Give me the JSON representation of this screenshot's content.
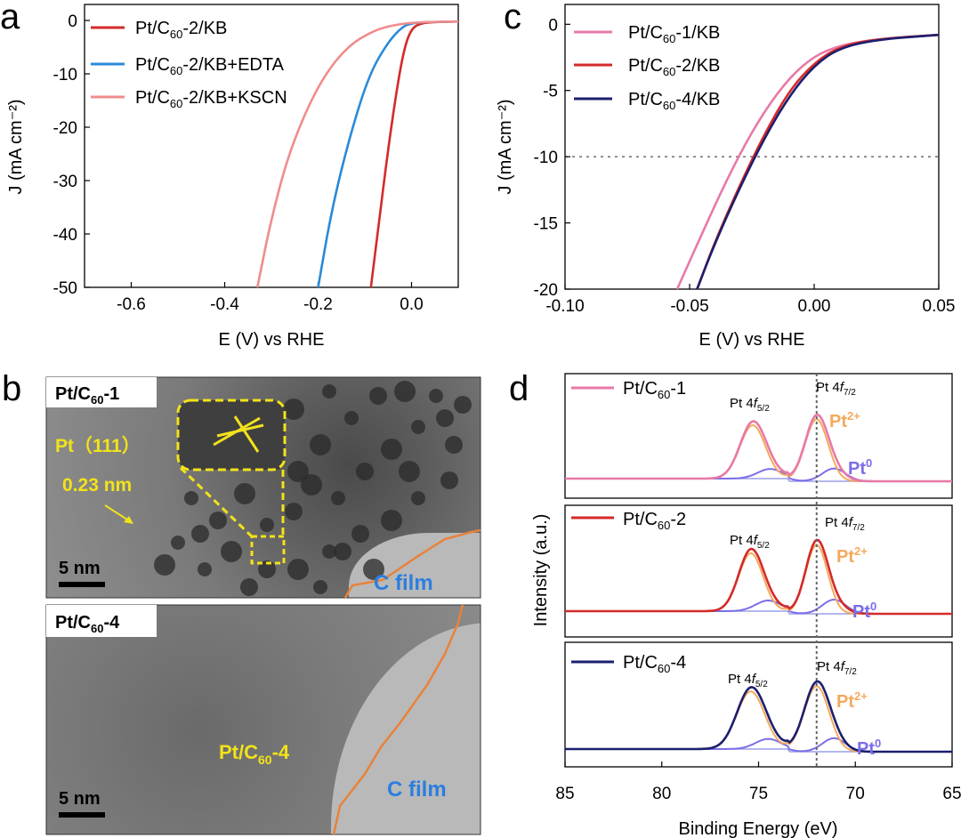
{
  "panels": {
    "a": "a",
    "b": "b",
    "c": "c",
    "d": "d"
  },
  "chart_data": [
    {
      "panel": "a",
      "type": "line",
      "xlabel": "E (V) vs RHE",
      "ylabel": "J (mA cm⁻²)",
      "xlim": [
        -0.7,
        0.1
      ],
      "ylim": [
        -50,
        3
      ],
      "xticks": [
        -0.6,
        -0.4,
        -0.2,
        0.0
      ],
      "yticks": [
        0,
        -10,
        -20,
        -30,
        -40,
        -50
      ],
      "xtick_labels": [
        "-0.6",
        "-0.4",
        "-0.2",
        "0.0"
      ],
      "ytick_labels": [
        "0",
        "-10",
        "-20",
        "-30",
        "-40",
        "-50"
      ],
      "legend": "top-left",
      "series": [
        {
          "name": "Pt/C60-2/KB",
          "color": "#d42a2a",
          "x": [
            -0.087,
            -0.07,
            -0.05,
            -0.03,
            -0.015,
            0.0,
            0.02,
            0.05,
            0.1
          ],
          "y": [
            -50,
            -38,
            -24,
            -12,
            -5,
            -1.5,
            -0.5,
            -0.3,
            -0.2
          ]
        },
        {
          "name": "Pt/C60-2/KB+EDTA",
          "color": "#2a8ad8",
          "x": [
            -0.2,
            -0.17,
            -0.13,
            -0.09,
            -0.05,
            -0.02,
            0.0,
            0.03,
            0.1
          ],
          "y": [
            -50,
            -35,
            -21,
            -10,
            -4,
            -1.2,
            -0.5,
            -0.3,
            -0.2
          ]
        },
        {
          "name": "Pt/C60-2/KB+KSCN",
          "color": "#f08c8c",
          "x": [
            -0.33,
            -0.3,
            -0.26,
            -0.2,
            -0.14,
            -0.08,
            -0.03,
            0.02,
            0.1
          ],
          "y": [
            -50,
            -37,
            -24,
            -12,
            -5,
            -1.8,
            -0.7,
            -0.3,
            -0.2
          ]
        }
      ]
    },
    {
      "panel": "c",
      "type": "line",
      "xlabel": "E (V) vs RHE",
      "ylabel": "J (mA cm⁻²)",
      "xlim": [
        -0.1,
        0.05
      ],
      "ylim": [
        -20,
        1.5
      ],
      "xticks": [
        -0.1,
        -0.05,
        0.0,
        0.05
      ],
      "yticks": [
        0,
        -5,
        -10,
        -15,
        -20
      ],
      "xtick_labels": [
        "-0.10",
        "-0.05",
        "0.00",
        "0.05"
      ],
      "ytick_labels": [
        "0",
        "-5",
        "-10",
        "-15",
        "-20"
      ],
      "reference_line": {
        "y": -10,
        "style": "dotted"
      },
      "legend": "top-left",
      "series": [
        {
          "name": "Pt/C60-1/KB",
          "color": "#e879a8",
          "x": [
            -0.055,
            -0.045,
            -0.035,
            -0.025,
            -0.015,
            -0.005,
            0.005,
            0.02,
            0.05
          ],
          "y": [
            -20,
            -15.8,
            -11.7,
            -8.1,
            -5.2,
            -3.1,
            -1.9,
            -1.2,
            -0.8
          ]
        },
        {
          "name": "Pt/C60-2/KB",
          "color": "#d42a2a",
          "x": [
            -0.047,
            -0.04,
            -0.03,
            -0.02,
            -0.01,
            0.0,
            0.01,
            0.025,
            0.05
          ],
          "y": [
            -20,
            -16.5,
            -12.2,
            -8.3,
            -5.0,
            -2.9,
            -1.7,
            -1.1,
            -0.8
          ]
        },
        {
          "name": "Pt/C60-4/KB",
          "color": "#1c1f6e",
          "x": [
            -0.047,
            -0.04,
            -0.03,
            -0.02,
            -0.01,
            0.0,
            0.01,
            0.025,
            0.05
          ],
          "y": [
            -20,
            -16.6,
            -12.4,
            -8.6,
            -5.4,
            -3.1,
            -1.8,
            -1.15,
            -0.8
          ]
        }
      ]
    },
    {
      "panel": "d",
      "type": "line",
      "xlabel": "Binding Energy (eV)",
      "ylabel": "Intensity (a.u.)",
      "xlim": [
        85,
        65
      ],
      "xticks": [
        85,
        80,
        75,
        70,
        65
      ],
      "xtick_labels": [
        "85",
        "80",
        "75",
        "70",
        "65"
      ],
      "reference_line": {
        "x": 72.0,
        "style": "dotted"
      },
      "subpanels": [
        {
          "name": "Pt/C60-1",
          "color": "#e879a8",
          "peak_4f52_eV": 75.3,
          "peak_4f72_eV": 72.0,
          "components": [
            "Pt2+",
            "Pt0"
          ]
        },
        {
          "name": "Pt/C60-2",
          "color": "#d42a2a",
          "peak_4f52_eV": 75.4,
          "peak_4f72_eV": 72.0,
          "components": [
            "Pt2+",
            "Pt0"
          ]
        },
        {
          "name": "Pt/C60-4",
          "color": "#1c1f6e",
          "peak_4f52_eV": 75.4,
          "peak_4f72_eV": 72.0,
          "components": [
            "Pt2+",
            "Pt0"
          ]
        }
      ],
      "labels": {
        "f52": "Pt 4f5/2",
        "f72": "Pt 4f7/2",
        "pt2": "Pt2+",
        "pt0": "Pt0"
      }
    }
  ],
  "tem": {
    "top_label": "Pt/C60-1",
    "bottom_label": "Pt/C60-4",
    "lattice_label": "Pt（111）",
    "spacing_label": "0.23 nm",
    "scale_bar": "5 nm",
    "film_label": "C film",
    "center_label": "Pt/C60-4"
  },
  "colors": {
    "yellow": "#f2e21a",
    "orange": "#e8823a",
    "blue_text": "#2b7ee0",
    "pt2_orange": "#f4a95c",
    "pt0_purple": "#7a6ee8"
  }
}
